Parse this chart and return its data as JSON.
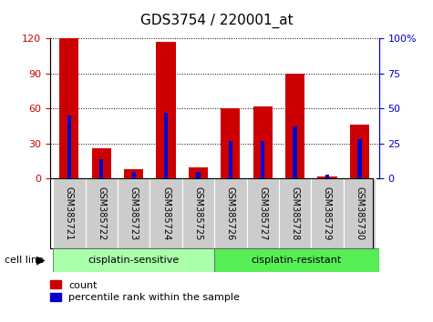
{
  "title": "GDS3754 / 220001_at",
  "samples": [
    "GSM385721",
    "GSM385722",
    "GSM385723",
    "GSM385724",
    "GSM385725",
    "GSM385726",
    "GSM385727",
    "GSM385728",
    "GSM385729",
    "GSM385730"
  ],
  "count": [
    120,
    26,
    8,
    117,
    10,
    60,
    62,
    90,
    2,
    46
  ],
  "percentile": [
    45,
    14,
    5,
    47,
    5,
    27,
    27,
    37,
    3,
    28
  ],
  "count_color": "#cc0000",
  "percentile_color": "#0000cc",
  "left_ylim": [
    0,
    120
  ],
  "right_ylim": [
    0,
    100
  ],
  "left_yticks": [
    0,
    30,
    60,
    90,
    120
  ],
  "right_yticks": [
    0,
    25,
    50,
    75,
    100
  ],
  "right_yticklabels": [
    "0",
    "25",
    "50",
    "75",
    "100%"
  ],
  "group1_label": "cisplatin-sensitive",
  "group2_label": "cisplatin-resistant",
  "group1_color": "#aaffaa",
  "group2_color": "#55ee55",
  "sample_box_color": "#cccccc",
  "cell_line_label": "cell line",
  "legend_count": "count",
  "legend_pct": "percentile rank within the sample",
  "bar_width": 0.6,
  "pct_bar_width": 0.12,
  "title_fontsize": 11,
  "tick_fontsize": 8,
  "sample_fontsize": 7,
  "group_fontsize": 8,
  "legend_fontsize": 8
}
